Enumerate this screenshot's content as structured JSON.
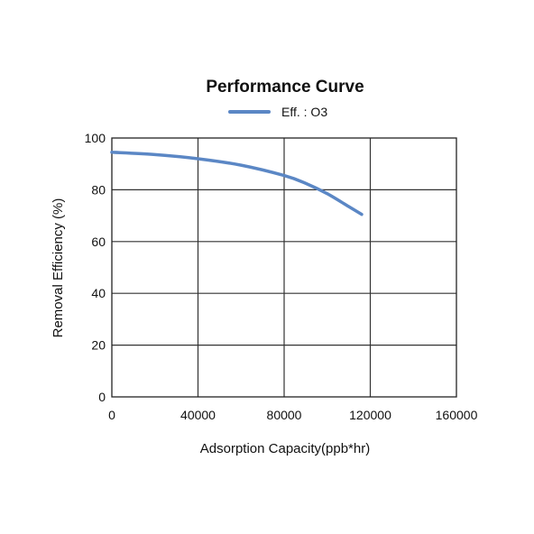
{
  "chart_data": {
    "type": "line",
    "title": "Performance Curve",
    "xlabel": "Adsorption Capacity(ppb*hr)",
    "ylabel": "Removal Efficiency (%)",
    "xlim": [
      0,
      160000
    ],
    "ylim": [
      0,
      100
    ],
    "xticks": [
      "0",
      "40000",
      "80000",
      "120000",
      "160000"
    ],
    "yticks": [
      "0",
      "20",
      "40",
      "60",
      "80",
      "100"
    ],
    "grid": true,
    "legend_position": "top-center",
    "series": [
      {
        "name": "Eff. : O3",
        "color": "#5b87c5",
        "x": [
          0,
          20000,
          40000,
          60000,
          80000,
          90000,
          100000,
          110000,
          116000
        ],
        "y": [
          94.5,
          93.6,
          92,
          89.5,
          85.5,
          82.5,
          78.5,
          73.5,
          70.5
        ]
      }
    ]
  }
}
